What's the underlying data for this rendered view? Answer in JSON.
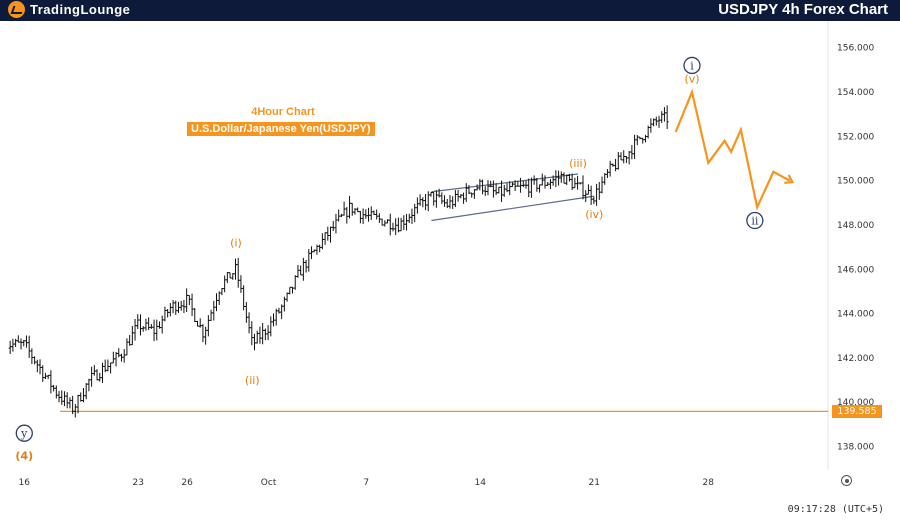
{
  "header": {
    "logo_part1": "TradingLounge",
    "logo_part2": "",
    "title": "USDJPY 4h Forex Chart"
  },
  "annotations": {
    "timeframe": "4Hour Chart",
    "instrument": "U.S.Dollar/Japanese Yen(USDJPY)"
  },
  "footer": {
    "time": "09:17:28 (UTC+5)"
  },
  "colors": {
    "accent": "#f7941d",
    "navy": "#0e1a3a",
    "wave_blue": "#2b3f6b",
    "candle": "#111111"
  },
  "chart_data": {
    "type": "candlestick",
    "title": "USDJPY 4h Forex Chart",
    "subtitle": "4Hour Chart — U.S.Dollar/Japanese Yen(USDJPY)",
    "y_ticks": [
      "156.000",
      "154.000",
      "152.000",
      "150.000",
      "148.000",
      "146.000",
      "144.000",
      "142.000",
      "140.000",
      "138.000"
    ],
    "ylim": [
      137.3,
      156.8
    ],
    "x_ticks": [
      "16",
      "23",
      "26",
      "Oct",
      "7",
      "14",
      "21",
      "28"
    ],
    "xlim": [
      "Sep 15",
      "Nov 3"
    ],
    "support_level": {
      "value": 139.585,
      "label": "139.585"
    },
    "grid": false,
    "price_path": [
      [
        "Sep 16",
        142.6
      ],
      [
        "Sep 17",
        141.5
      ],
      [
        "Sep 18",
        140.4
      ],
      [
        "Sep 19",
        139.7
      ],
      [
        "Sep 20",
        141.0
      ],
      [
        "Sep 22",
        142.2
      ],
      [
        "Sep 23",
        143.5
      ],
      [
        "Sep 24",
        143.2
      ],
      [
        "Sep 25",
        144.3
      ],
      [
        "Sep 26",
        144.6
      ],
      [
        "Sep 27",
        143.1
      ],
      [
        "Sep 28",
        145.2
      ],
      [
        "Sep 29",
        146.0
      ],
      [
        "Sep 30",
        142.6
      ],
      [
        "Oct 1",
        143.4
      ],
      [
        "Oct 2",
        144.5
      ],
      [
        "Oct 3",
        146.0
      ],
      [
        "Oct 4",
        147.0
      ],
      [
        "Oct 6",
        148.8
      ],
      [
        "Oct 7",
        148.4
      ],
      [
        "Oct 9",
        148.0
      ],
      [
        "Oct 10",
        148.7
      ],
      [
        "Oct 11",
        149.3
      ],
      [
        "Oct 12",
        148.9
      ],
      [
        "Oct 13",
        149.4
      ],
      [
        "Oct 14",
        149.8
      ],
      [
        "Oct 15",
        149.4
      ],
      [
        "Oct 16",
        149.6
      ],
      [
        "Oct 18",
        149.9
      ],
      [
        "Oct 19",
        150.2
      ],
      [
        "Oct 20",
        149.7
      ],
      [
        "Oct 21",
        149.3
      ],
      [
        "Oct 22",
        150.5
      ],
      [
        "Oct 23",
        151.2
      ],
      [
        "Oct 24",
        152.1
      ],
      [
        "Oct 25",
        152.8
      ]
    ],
    "wave_labels": [
      {
        "text": "(4)",
        "date": "Sep 16",
        "price": 137.6,
        "style": "orange-bold"
      },
      {
        "text": "y",
        "date": "Sep 16",
        "price": 138.6,
        "style": "blue-circle"
      },
      {
        "text": "(i)",
        "date": "Sep 29",
        "price": 147.2,
        "style": "orange"
      },
      {
        "text": "(ii)",
        "date": "Sep 30",
        "price": 141.0,
        "style": "orange"
      },
      {
        "text": "(iii)",
        "date": "Oct 20",
        "price": 150.8,
        "style": "orange"
      },
      {
        "text": "(iv)",
        "date": "Oct 21",
        "price": 148.5,
        "style": "orange"
      },
      {
        "text": "(v)",
        "date": "Oct 27",
        "price": 154.6,
        "style": "orange"
      },
      {
        "text": "i",
        "date": "Oct 27",
        "price": 155.2,
        "style": "blue-circle"
      },
      {
        "text": "ii",
        "date": "Oct 30",
        "price": 148.2,
        "style": "blue-circle"
      }
    ],
    "channel": {
      "upper": [
        [
          "Oct 11",
          149.5
        ],
        [
          "Oct 20",
          150.3
        ]
      ],
      "lower": [
        [
          "Oct 11",
          148.2
        ],
        [
          "Oct 21",
          149.3
        ]
      ]
    },
    "projection": [
      [
        "Oct 26",
        152.2
      ],
      [
        "Oct 27",
        154.0
      ],
      [
        "Oct 28",
        150.8
      ],
      [
        "Oct 29",
        151.8
      ],
      [
        "Oct 29",
        151.3
      ],
      [
        "Oct 30",
        152.3
      ],
      [
        "Oct 31",
        148.8
      ],
      [
        "Nov 1",
        150.4
      ],
      [
        "Nov 2",
        150.0
      ]
    ]
  }
}
